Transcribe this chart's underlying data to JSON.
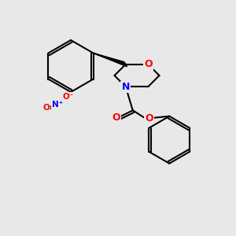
{
  "background_color": "#e8e8e8",
  "bond_color": "#000000",
  "bond_width": 1.5,
  "atom_colors": {
    "C": "#000000",
    "N": "#0000ff",
    "O": "#ff0000",
    "H": "#000000"
  },
  "figsize": [
    3.0,
    3.0
  ],
  "dpi": 100
}
